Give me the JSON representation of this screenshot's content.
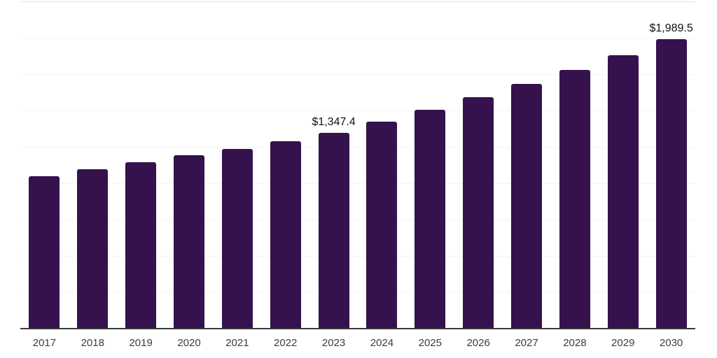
{
  "chart_data": {
    "type": "bar",
    "title": "",
    "xlabel": "",
    "ylabel": "",
    "categories": [
      "2017",
      "2018",
      "2019",
      "2020",
      "2021",
      "2022",
      "2023",
      "2024",
      "2025",
      "2026",
      "2027",
      "2028",
      "2029",
      "2030"
    ],
    "values": [
      1048,
      1096,
      1146,
      1192,
      1238,
      1290,
      1347.4,
      1424.5,
      1506.2,
      1592.3,
      1683.5,
      1779.9,
      1881.8,
      1989.5
    ],
    "value_labels": {
      "2023": "$1,347.4",
      "2030": "$1,989.5"
    },
    "ylim": [
      0,
      2250
    ],
    "gridline_interval": 250,
    "grid": true,
    "legend": false,
    "y_axis_ticks_visible": false,
    "colors": {
      "bar": "#35124d",
      "axis_line": "#3a3a3a",
      "gridline": "#f4f4f4",
      "top_gridline": "#e3e3e3",
      "value_label_text": "#111111",
      "axis_label_text": "#3d3d3d",
      "background": "#ffffff"
    }
  }
}
